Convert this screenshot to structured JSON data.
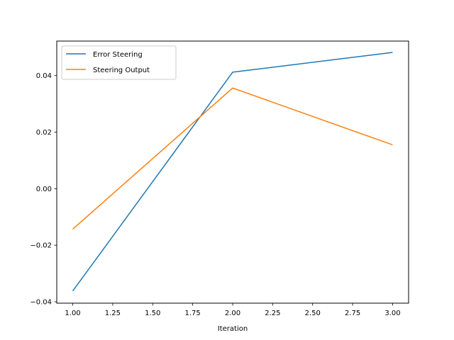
{
  "chart_data": {
    "type": "line",
    "title": "",
    "xlabel": "Iteration",
    "ylabel": "",
    "x": [
      1.0,
      2.0,
      3.0
    ],
    "series": [
      {
        "name": "Error Steering",
        "color": "#1f77b4",
        "values": [
          -0.0362,
          0.0412,
          0.0482
        ]
      },
      {
        "name": "Steering Output",
        "color": "#ff7f0e",
        "values": [
          -0.0143,
          0.0356,
          0.0155
        ]
      }
    ],
    "xlim": [
      0.9,
      3.1
    ],
    "ylim": [
      -0.0405,
      0.0522
    ],
    "x_ticks": [
      1.0,
      1.25,
      1.5,
      1.75,
      2.0,
      2.25,
      2.5,
      2.75,
      3.0
    ],
    "x_tick_labels": [
      "1.00",
      "1.25",
      "1.50",
      "1.75",
      "2.00",
      "2.25",
      "2.50",
      "2.75",
      "3.00"
    ],
    "y_ticks": [
      -0.04,
      -0.02,
      0.0,
      0.02,
      0.04
    ],
    "y_tick_labels": [
      "−0.04",
      "−0.02",
      "0.00",
      "0.02",
      "0.04"
    ],
    "grid": false,
    "legend_position": "top-left"
  }
}
